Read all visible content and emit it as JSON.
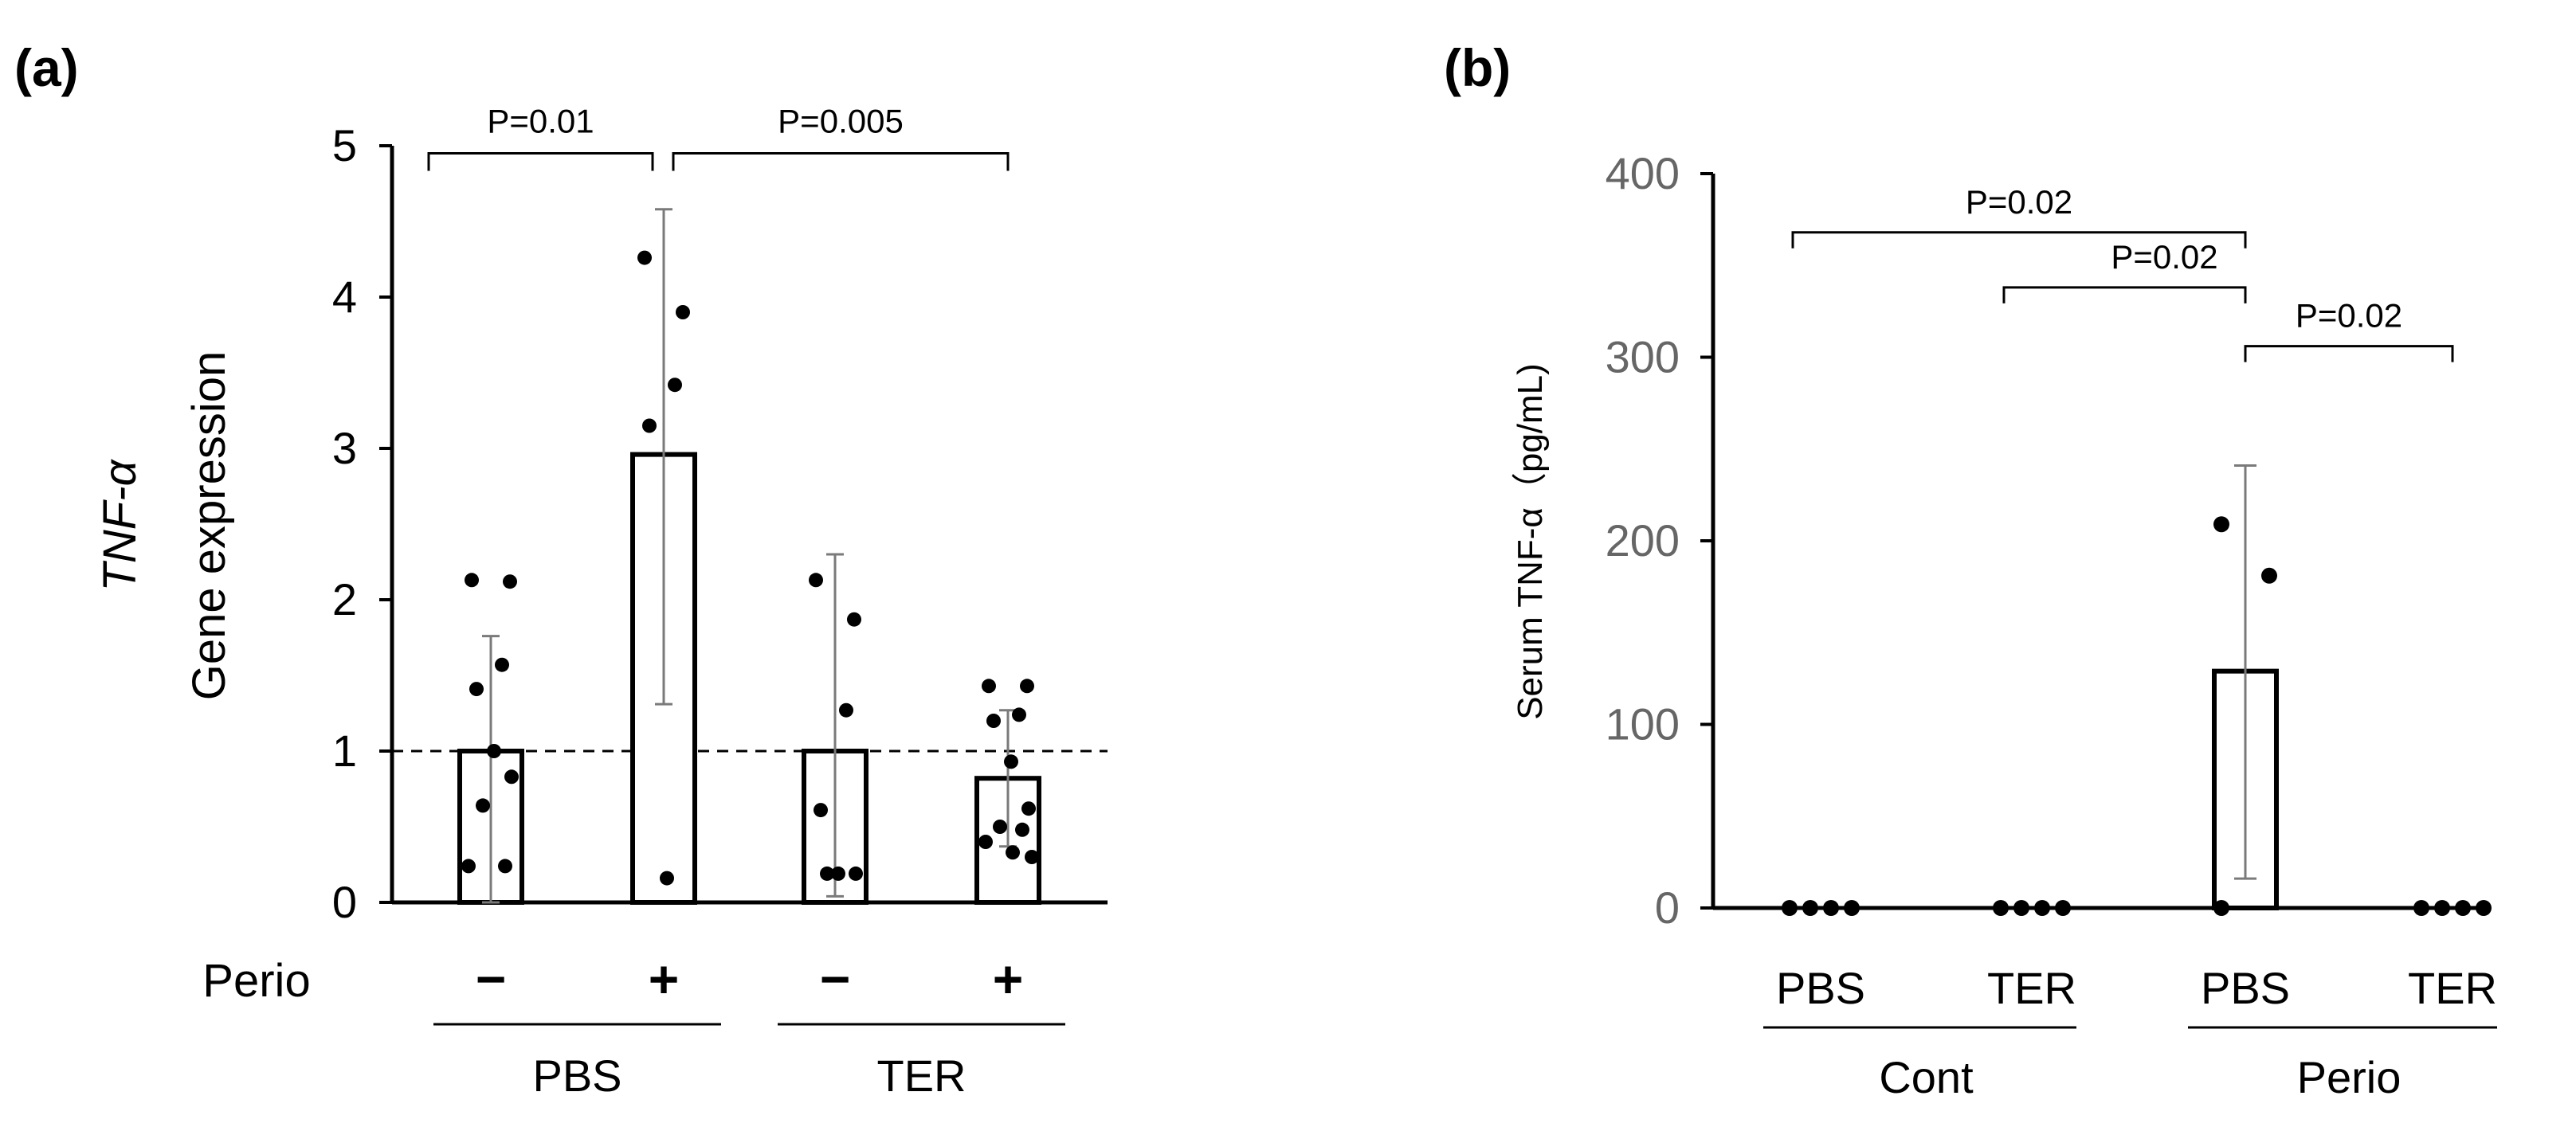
{
  "chart_data": [
    {
      "panel_label": "(a)",
      "type": "bar",
      "ylabel_italic": "TNF-α",
      "ylabel": "Gene expression",
      "ylim": [
        0,
        5
      ],
      "yticks": [
        "0",
        "1",
        "2",
        "3",
        "4",
        "5"
      ],
      "reference_line": 1,
      "perio_label": "Perio",
      "categories": [
        {
          "sign": "−",
          "group": "PBS",
          "mean": 1.0,
          "err_low": 0.0,
          "err_high": 1.76,
          "points": [
            2.13,
            2.12,
            1.57,
            1.41,
            1.0,
            0.83,
            0.64,
            0.24,
            0.24
          ]
        },
        {
          "sign": "+",
          "group": "PBS",
          "mean": 2.96,
          "err_low": 1.31,
          "err_high": 4.58,
          "points": [
            4.26,
            3.9,
            3.42,
            3.15,
            0.16
          ]
        },
        {
          "sign": "−",
          "group": "TER",
          "mean": 1.0,
          "err_low": 0.04,
          "err_high": 2.3,
          "points": [
            2.13,
            1.87,
            1.27,
            0.61,
            0.19,
            0.19,
            0.19
          ]
        },
        {
          "sign": "+",
          "group": "TER",
          "mean": 0.82,
          "err_low": 0.37,
          "err_high": 1.27,
          "points": [
            1.43,
            1.43,
            1.24,
            1.2,
            0.93,
            0.62,
            0.5,
            0.48,
            0.4,
            0.33,
            0.3
          ]
        }
      ],
      "groups": [
        "PBS",
        "TER"
      ],
      "annotations": [
        {
          "text": "P=0.01",
          "from": 0,
          "to": 1,
          "y": 4.95
        },
        {
          "text": "P=0.005",
          "from": 1,
          "to": 3,
          "y": 4.95
        }
      ]
    },
    {
      "panel_label": "(b)",
      "type": "bar",
      "ylabel": "Serum TNF-α（pg/mL)",
      "ylim": [
        0,
        400
      ],
      "yticks": [
        "0",
        "100",
        "200",
        "300",
        "400"
      ],
      "categories": [
        {
          "label": "PBS",
          "group": "Cont",
          "mean": 0,
          "points": [
            0,
            0,
            0,
            0
          ]
        },
        {
          "label": "TER",
          "group": "Cont",
          "mean": 0,
          "points": [
            0,
            0,
            0,
            0
          ]
        },
        {
          "label": "PBS",
          "group": "Perio",
          "mean": 129,
          "err_low": 16,
          "err_high": 241,
          "points": [
            209,
            181,
            0
          ]
        },
        {
          "label": "TER",
          "group": "Perio",
          "mean": 0,
          "points": [
            0,
            0,
            0,
            0
          ]
        }
      ],
      "groups": [
        "Cont",
        "Perio"
      ],
      "annotations": [
        {
          "text": "P=0.02",
          "from": 0,
          "to": 2,
          "y": 368
        },
        {
          "text": "P=0.02",
          "from": 1,
          "to": 2,
          "y": 338
        },
        {
          "text": "P=0.02",
          "from": 2,
          "to": 3,
          "y": 306
        }
      ]
    }
  ]
}
